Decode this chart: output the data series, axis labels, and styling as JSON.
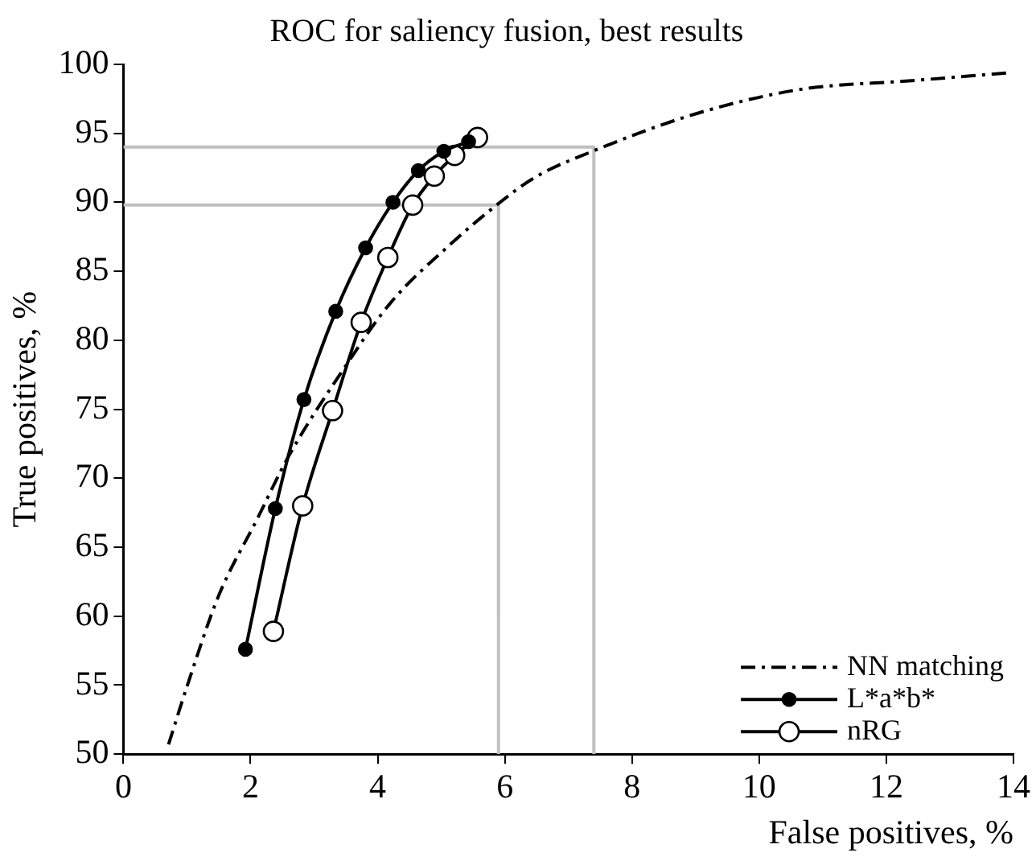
{
  "chart_data": {
    "type": "line",
    "title": "ROC for saliency fusion, best results",
    "xlabel": "False positives, %",
    "ylabel": "True positives, %",
    "xlim": [
      0,
      14
    ],
    "xticks": [
      0,
      2,
      4,
      6,
      8,
      10,
      12,
      14
    ],
    "ylim": [
      50,
      100
    ],
    "yticks": [
      50,
      55,
      60,
      65,
      70,
      75,
      80,
      85,
      90,
      95,
      100
    ],
    "grid": false,
    "legend": "bottom right",
    "series": [
      {
        "name": "NN matching",
        "color": "#000000",
        "line_style": "dashdot",
        "marker": "none",
        "x": [
          0.71,
          1.0,
          1.5,
          2.1,
          2.6,
          3.49,
          4.2,
          5.13,
          5.87,
          6.47,
          7.38,
          8.99,
          10.67,
          12.35,
          13.95
        ],
        "values": [
          50.7,
          54.9,
          61.5,
          67,
          71.6,
          78.1,
          82.7,
          86.9,
          89.8,
          91.8,
          93.7,
          96.4,
          98.2,
          98.8,
          99.4
        ]
      },
      {
        "name": "L*a*b*",
        "color": "#000000",
        "line_style": "solid",
        "marker": "circle",
        "x": [
          1.92,
          2.39,
          2.84,
          3.34,
          3.81,
          4.24,
          4.64,
          5.04,
          5.43
        ],
        "values": [
          57.6,
          67.8,
          75.7,
          82.1,
          86.7,
          90,
          92.3,
          93.7,
          94.4
        ]
      },
      {
        "name": "nRG",
        "color": "#000000",
        "line_style": "solid",
        "marker": "open circle",
        "x": [
          2.36,
          2.82,
          3.29,
          3.74,
          4.16,
          4.55,
          4.89,
          5.21,
          5.57
        ],
        "values": [
          58.9,
          68,
          74.9,
          81.3,
          86,
          89.8,
          91.9,
          93.4,
          94.7
        ]
      },
      {
        "color": "#c0c0c0",
        "line_style": "solid",
        "marker": "none",
        "x": [
          0,
          7.4,
          7.4
        ],
        "values": [
          94,
          94,
          50
        ]
      },
      {
        "color": "#c0c0c0",
        "line_style": "solid",
        "marker": "none",
        "x": [
          0,
          5.9,
          5.9
        ],
        "values": [
          89.8,
          89.8,
          50
        ]
      }
    ]
  }
}
